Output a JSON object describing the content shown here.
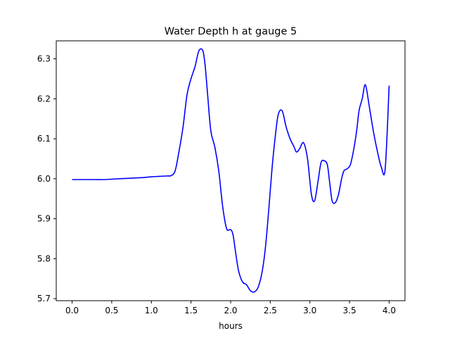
{
  "chart_data": {
    "type": "line",
    "title": "Water Depth h at gauge 5",
    "xlabel": "hours",
    "ylabel": "",
    "xlim": [
      -0.2,
      4.2
    ],
    "ylim": [
      5.695,
      6.345
    ],
    "xticks": [
      0.0,
      0.5,
      1.0,
      1.5,
      2.0,
      2.5,
      3.0,
      3.5,
      4.0
    ],
    "xtick_labels": [
      "0.0",
      "0.5",
      "1.0",
      "1.5",
      "2.0",
      "2.5",
      "3.0",
      "3.5",
      "4.0"
    ],
    "yticks": [
      5.7,
      5.8,
      5.9,
      6.0,
      6.1,
      6.2,
      6.3
    ],
    "ytick_labels": [
      "5.7",
      "5.8",
      "5.9",
      "6.0",
      "6.1",
      "6.2",
      "6.3"
    ],
    "grid": false,
    "series": [
      {
        "color": "#0000ff",
        "x": [
          0.0,
          0.2,
          0.4,
          0.5,
          0.6,
          0.8,
          0.9,
          1.0,
          1.1,
          1.2,
          1.25,
          1.3,
          1.35,
          1.4,
          1.45,
          1.5,
          1.55,
          1.6,
          1.65,
          1.68,
          1.71,
          1.75,
          1.8,
          1.85,
          1.9,
          1.95,
          2.0,
          2.03,
          2.06,
          2.1,
          2.15,
          2.2,
          2.25,
          2.3,
          2.35,
          2.4,
          2.44,
          2.48,
          2.52,
          2.56,
          2.6,
          2.65,
          2.7,
          2.75,
          2.8,
          2.83,
          2.87,
          2.92,
          2.97,
          3.02,
          3.06,
          3.1,
          3.14,
          3.18,
          3.22,
          3.25,
          3.28,
          3.32,
          3.36,
          3.4,
          3.43,
          3.47,
          3.51,
          3.55,
          3.59,
          3.62,
          3.66,
          3.7,
          3.75,
          3.8,
          3.85,
          3.9,
          3.95,
          4.0
        ],
        "y": [
          5.998,
          5.998,
          5.998,
          5.999,
          6.0,
          6.002,
          6.003,
          6.005,
          6.006,
          6.007,
          6.008,
          6.02,
          6.07,
          6.13,
          6.21,
          6.25,
          6.28,
          6.32,
          6.32,
          6.28,
          6.21,
          6.12,
          6.08,
          6.02,
          5.93,
          5.875,
          5.873,
          5.86,
          5.82,
          5.77,
          5.742,
          5.735,
          5.72,
          5.717,
          5.73,
          5.77,
          5.83,
          5.92,
          6.02,
          6.1,
          6.16,
          6.17,
          6.13,
          6.1,
          6.08,
          6.067,
          6.075,
          6.09,
          6.05,
          5.96,
          5.945,
          5.99,
          6.04,
          6.045,
          6.035,
          5.99,
          5.945,
          5.94,
          5.96,
          6.0,
          6.02,
          6.025,
          6.035,
          6.07,
          6.12,
          6.17,
          6.2,
          6.235,
          6.18,
          6.12,
          6.07,
          6.03,
          6.025,
          6.233
        ]
      }
    ]
  }
}
